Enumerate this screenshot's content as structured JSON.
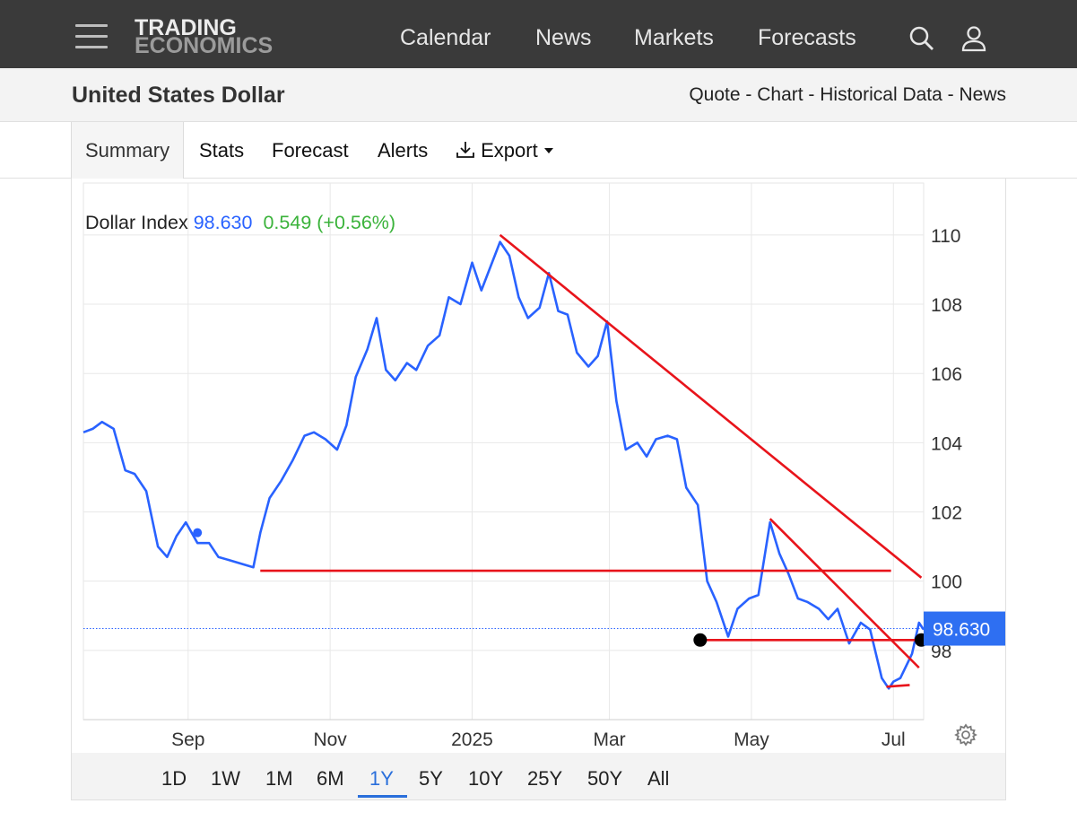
{
  "topbar": {
    "logo_line1": "TRADING",
    "logo_line2": "ECONOMICS",
    "nav": [
      "Calendar",
      "News",
      "Markets",
      "Forecasts"
    ],
    "icons": [
      "menu-icon",
      "search-icon",
      "user-icon"
    ]
  },
  "subbar": {
    "title": "United States Dollar",
    "links": [
      "Quote",
      "Chart",
      "Historical Data",
      "News"
    ],
    "separator": " - "
  },
  "tabs": {
    "summary": "Summary",
    "stats": "Stats",
    "forecast": "Forecast",
    "alerts": "Alerts",
    "export": "Export"
  },
  "ranges": [
    "1D",
    "1W",
    "1M",
    "6M",
    "1Y",
    "5Y",
    "10Y",
    "25Y",
    "50Y",
    "All"
  ],
  "active_range": "1Y",
  "colors": {
    "line": "#2962ff",
    "trendline": "#e8141b",
    "positive": "#3bb33b",
    "accent": "#2a6fdb",
    "price_tag": "#2e6ff2"
  },
  "chart_data": {
    "type": "line",
    "legend_name": "Dollar Index",
    "last_value": "98.630",
    "change": "0.549",
    "change_pct": "(+0.56%)",
    "price_tag": "98.630",
    "y_ticks": [
      "110",
      "108",
      "106",
      "104",
      "102",
      "100",
      "98"
    ],
    "ylim": [
      96,
      111.5
    ],
    "x_ticks": [
      "Sep",
      "Nov",
      "2025",
      "Mar",
      "May",
      "Jul"
    ],
    "x_tick_dates": [
      "2024-09-01",
      "2024-11-01",
      "2025-01-01",
      "2025-03-01",
      "2025-05-01",
      "2025-07-01"
    ],
    "xlim": [
      "2024-07-18",
      "2025-07-14"
    ],
    "grid": true,
    "series": [
      {
        "x": [
          "2024-07-18",
          "2024-07-22",
          "2024-07-26",
          "2024-07-31",
          "2024-08-05",
          "2024-08-09",
          "2024-08-14",
          "2024-08-19",
          "2024-08-23",
          "2024-08-27",
          "2024-08-31",
          "2024-09-05",
          "2024-09-10",
          "2024-09-14",
          "2024-09-19",
          "2024-09-24",
          "2024-09-29",
          "2024-10-02",
          "2024-10-06",
          "2024-10-11",
          "2024-10-16",
          "2024-10-21",
          "2024-10-25",
          "2024-10-30",
          "2024-11-04",
          "2024-11-08",
          "2024-11-12",
          "2024-11-17",
          "2024-11-21",
          "2024-11-25",
          "2024-11-29",
          "2024-12-04",
          "2024-12-08",
          "2024-12-13",
          "2024-12-18",
          "2024-12-22",
          "2024-12-27",
          "2025-01-01",
          "2025-01-05",
          "2025-01-09",
          "2025-01-13",
          "2025-01-17",
          "2025-01-21",
          "2025-01-25",
          "2025-01-30",
          "2025-02-03",
          "2025-02-07",
          "2025-02-11",
          "2025-02-15",
          "2025-02-20",
          "2025-02-24",
          "2025-02-28",
          "2025-03-04",
          "2025-03-08",
          "2025-03-13",
          "2025-03-17",
          "2025-03-21",
          "2025-03-26",
          "2025-03-30",
          "2025-04-03",
          "2025-04-08",
          "2025-04-12",
          "2025-04-16",
          "2025-04-21",
          "2025-04-25",
          "2025-04-30",
          "2025-05-04",
          "2025-05-09",
          "2025-05-13",
          "2025-05-17",
          "2025-05-21",
          "2025-05-25",
          "2025-05-30",
          "2025-06-03",
          "2025-06-07",
          "2025-06-12",
          "2025-06-17",
          "2025-06-21",
          "2025-06-26",
          "2025-06-29",
          "2025-07-01",
          "2025-07-04",
          "2025-07-09",
          "2025-07-12",
          "2025-07-14"
        ],
        "values": [
          104.3,
          104.4,
          104.6,
          104.4,
          103.2,
          103.1,
          102.6,
          101.0,
          100.7,
          101.3,
          101.7,
          101.1,
          101.1,
          100.7,
          100.6,
          100.5,
          100.4,
          101.4,
          102.4,
          102.9,
          103.5,
          104.2,
          104.3,
          104.1,
          103.8,
          104.5,
          105.9,
          106.7,
          107.6,
          106.1,
          105.8,
          106.3,
          106.1,
          106.8,
          107.1,
          108.2,
          108.0,
          109.2,
          108.4,
          109.1,
          109.8,
          109.4,
          108.2,
          107.6,
          107.9,
          108.9,
          107.8,
          107.7,
          106.6,
          106.2,
          106.5,
          107.5,
          105.2,
          103.8,
          104.0,
          103.6,
          104.1,
          104.2,
          104.1,
          102.7,
          102.2,
          100.0,
          99.4,
          98.4,
          99.2,
          99.5,
          99.6,
          101.7,
          100.8,
          100.2,
          99.5,
          99.4,
          99.2,
          98.9,
          99.2,
          98.2,
          98.8,
          98.6,
          97.2,
          96.9,
          97.1,
          97.2,
          97.9,
          98.8,
          98.6
        ]
      }
    ],
    "trendlines": [
      {
        "from": [
          "2025-01-13",
          110.0
        ],
        "to": [
          "2025-07-13",
          100.1
        ]
      },
      {
        "from": [
          "2025-05-09",
          101.8
        ],
        "to": [
          "2025-07-12",
          97.5
        ]
      },
      {
        "from": [
          "2024-10-02",
          100.3
        ],
        "to": [
          "2025-06-30",
          100.3
        ]
      },
      {
        "from": [
          "2025-04-09",
          98.3
        ],
        "to": [
          "2025-07-13",
          98.3
        ]
      },
      {
        "from": [
          "2025-06-28",
          96.95
        ],
        "to": [
          "2025-07-08",
          97.0
        ]
      }
    ],
    "markers": [
      {
        "x": "2024-09-05",
        "y": 101.4,
        "style": "small-blue"
      },
      {
        "x": "2025-04-09",
        "y": 98.3,
        "style": "black"
      },
      {
        "x": "2025-07-13",
        "y": 98.3,
        "style": "black"
      }
    ],
    "reference_line": 98.63
  }
}
